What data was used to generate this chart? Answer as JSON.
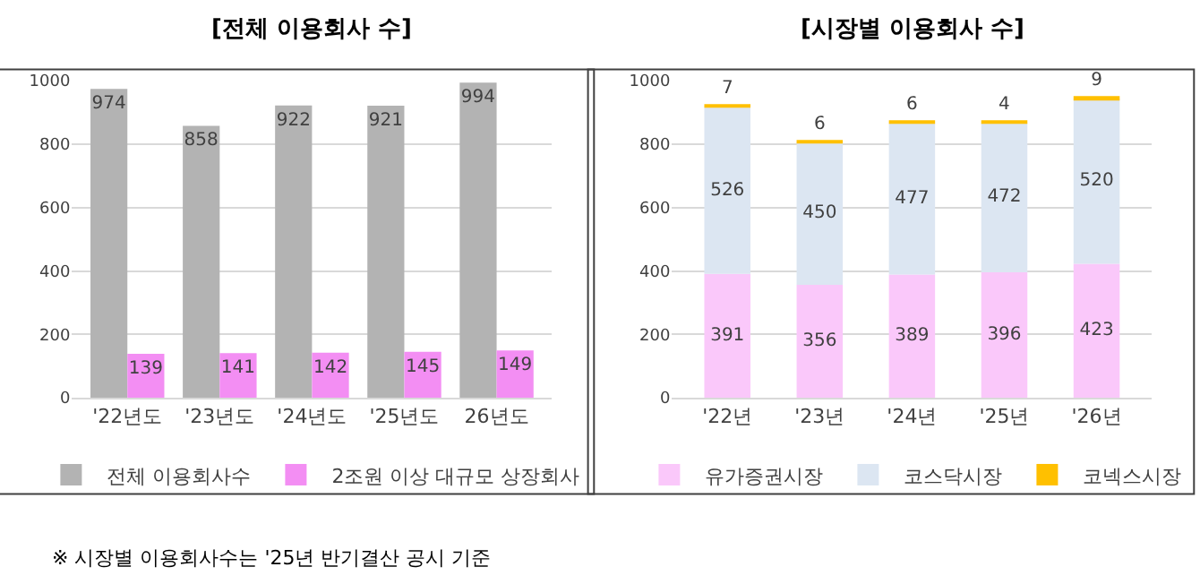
{
  "chart_data": [
    {
      "type": "bar",
      "title": "[전체 이용회사 수]",
      "categories": [
        "'22년도",
        "'23년도",
        "'24년도",
        "'25년도",
        "26년도"
      ],
      "ylim": [
        0,
        1000
      ],
      "yticks": [
        0,
        200,
        400,
        600,
        800,
        1000
      ],
      "grid": "y",
      "legend": "bottom",
      "data_labels": true,
      "series": [
        {
          "name": "전체 이용회사수",
          "color": "#b3b3b3",
          "values": [
            974,
            858,
            922,
            921,
            994
          ]
        },
        {
          "name": "2조원 이상 대규모 상장회사",
          "color": "#f38ef3",
          "values": [
            139,
            141,
            142,
            145,
            149
          ]
        }
      ]
    },
    {
      "type": "bar",
      "title": "[시장별 이용회사 수]",
      "categories": [
        "'22년",
        "'23년",
        "'24년",
        "'25년",
        "'26년"
      ],
      "ylim": [
        0,
        1000
      ],
      "yticks": [
        0,
        200,
        400,
        600,
        800,
        1000
      ],
      "grid": "y",
      "legend": "bottom",
      "data_labels": true,
      "stacked": true,
      "series": [
        {
          "name": "유가증권시장",
          "color": "#fac8fa",
          "values": [
            391,
            356,
            389,
            396,
            423
          ]
        },
        {
          "name": "코스닥시장",
          "color": "#dce6f2",
          "values": [
            526,
            450,
            477,
            472,
            520
          ]
        },
        {
          "name": "코넥스시장",
          "color": "#ffc000",
          "values": [
            7,
            6,
            6,
            4,
            9
          ]
        }
      ],
      "annotations": [
        "※ 시장별 이용회사수는 '25년 반기결산 공시 기준"
      ]
    }
  ]
}
